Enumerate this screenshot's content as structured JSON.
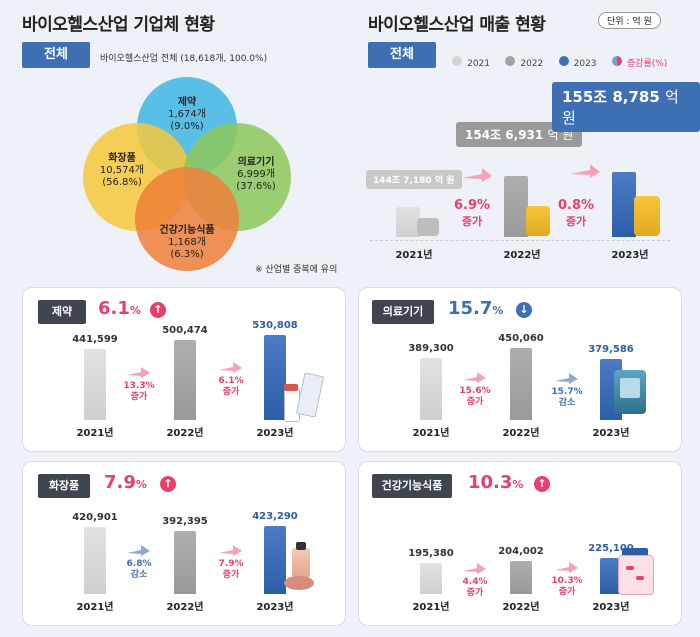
{
  "left": {
    "title": "바이오헬스산업 기업체 현황",
    "tag": "전체",
    "total_note": "바이오헬스산업 전체 (18,618개, 100.0%)",
    "footnote": "※ 산업별 중복에 유의",
    "venn": [
      {
        "name": "제약",
        "count": "1,674개",
        "pct": "(9.0%)",
        "color": "#3fb6e4"
      },
      {
        "name": "화장품",
        "count": "10,574개",
        "pct": "(56.8%)",
        "color": "#f6c83a"
      },
      {
        "name": "의료기기",
        "count": "6,999개",
        "pct": "(37.6%)",
        "color": "#8cc85a"
      },
      {
        "name": "건강기능식품",
        "count": "1,168개",
        "pct": "(6.3%)",
        "color": "#ee7f3a"
      }
    ]
  },
  "right": {
    "title": "바이오헬스산업 매출 현황",
    "unit": "단위 : 억 원",
    "tag": "전체",
    "legend": [
      "2021",
      "2022",
      "2023",
      "증감률(%)"
    ],
    "years": [
      "2021년",
      "2022년",
      "2023년"
    ],
    "bubbles": [
      {
        "jo": "144조",
        "eok": "7,180",
        "unit": "억 원"
      },
      {
        "jo": "154조",
        "eok": "6,931",
        "unit": "억 원"
      },
      {
        "jo": "155조",
        "eok": "8,785",
        "unit": "억 원"
      }
    ],
    "changes": [
      {
        "pct": "6.9%",
        "dir": "증가"
      },
      {
        "pct": "0.8%",
        "dir": "증가"
      }
    ]
  },
  "colors": {
    "accent_blue": "#3e6fb3",
    "accent_pink": "#e8406e",
    "bar_2021": "#d4d4d4",
    "bar_2022": "#a2a2a2",
    "bar_2023": "#3e6fb3"
  },
  "chart_data": [
    {
      "type": "bar",
      "title": "제약",
      "growth": {
        "value": "6.1",
        "unit": "%",
        "direction": "up"
      },
      "categories": [
        "2021년",
        "2022년",
        "2023년"
      ],
      "values": [
        441599,
        500474,
        530808
      ],
      "labels": [
        "441,599",
        "500,474",
        "530,808"
      ],
      "changes": [
        {
          "pct": "13.3%",
          "dir": "증가"
        },
        {
          "pct": "6.1%",
          "dir": "증가"
        }
      ]
    },
    {
      "type": "bar",
      "title": "의료기기",
      "growth": {
        "value": "15.7",
        "unit": "%",
        "direction": "down"
      },
      "categories": [
        "2021년",
        "2022년",
        "2023년"
      ],
      "values": [
        389300,
        450060,
        379586
      ],
      "labels": [
        "389,300",
        "450,060",
        "379,586"
      ],
      "changes": [
        {
          "pct": "15.6%",
          "dir": "증가"
        },
        {
          "pct": "15.7%",
          "dir": "감소"
        }
      ]
    },
    {
      "type": "bar",
      "title": "화장품",
      "growth": {
        "value": "7.9",
        "unit": "%",
        "direction": "up"
      },
      "categories": [
        "2021년",
        "2022년",
        "2023년"
      ],
      "values": [
        420901,
        392395,
        423290
      ],
      "labels": [
        "420,901",
        "392,395",
        "423,290"
      ],
      "changes": [
        {
          "pct": "6.8%",
          "dir": "감소"
        },
        {
          "pct": "7.9%",
          "dir": "증가"
        }
      ]
    },
    {
      "type": "bar",
      "title": "건강기능식품",
      "growth": {
        "value": "10.3",
        "unit": "%",
        "direction": "up"
      },
      "categories": [
        "2021년",
        "2022년",
        "2023년"
      ],
      "values": [
        195380,
        204002,
        225100
      ],
      "labels": [
        "195,380",
        "204,002",
        "225,100"
      ],
      "changes": [
        {
          "pct": "4.4%",
          "dir": "증가"
        },
        {
          "pct": "10.3%",
          "dir": "증가"
        }
      ]
    }
  ]
}
